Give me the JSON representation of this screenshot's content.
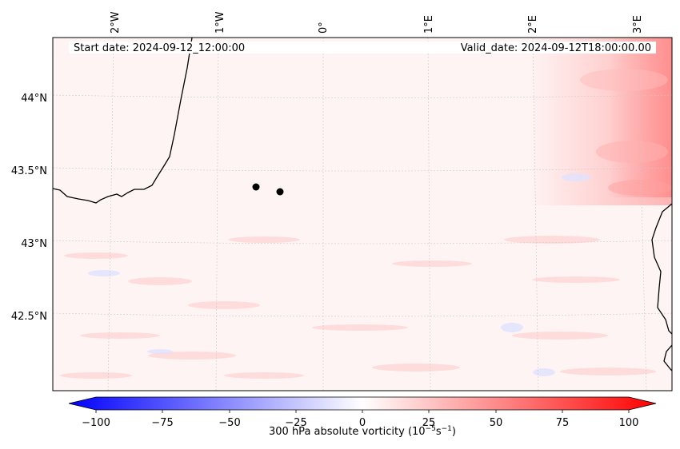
{
  "header": {
    "start_date": "Start date: 2024-09-12_12:00:00",
    "valid_date": "Valid_date: 2024-09-12T18:00:00.00"
  },
  "map": {
    "lon_labels": [
      "2°W",
      "1°W",
      "0°",
      "1°E",
      "2°E",
      "3°E"
    ],
    "lat_labels": [
      "44°N",
      "43.5°N",
      "43°N",
      "42.5°N"
    ],
    "points": [
      {
        "lon": -0.65,
        "lat": 43.39
      },
      {
        "lon": -0.42,
        "lat": 43.36
      }
    ]
  },
  "colorbar": {
    "label_prefix": "300 hPa absolute vorticity (10",
    "label_exp1": "−5",
    "label_mid": "s",
    "label_exp2": "−1",
    "label_suffix": ")",
    "ticks": [
      "−100",
      "−75",
      "−50",
      "−25",
      "0",
      "25",
      "50",
      "75",
      "100"
    ],
    "min": -100,
    "max": 100,
    "colors": {
      "negative": "#0000ff",
      "zero": "#ffffff",
      "positive": "#ff0000"
    }
  }
}
